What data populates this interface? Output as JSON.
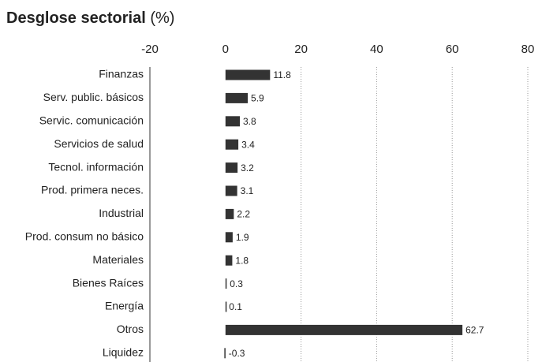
{
  "chart_data": {
    "type": "barh",
    "title": "Desglose sectorial",
    "title_unit": "(%)",
    "categories": [
      "Finanzas",
      "Serv. public. básicos",
      "Servic. comunicación",
      "Servicios de salud",
      "Tecnol. información",
      "Prod. primera neces.",
      "Industrial",
      "Prod. consum no básico",
      "Materiales",
      "Bienes Raíces",
      "Energía",
      "Otros",
      "Liquidez"
    ],
    "values": [
      11.8,
      5.9,
      3.8,
      3.4,
      3.2,
      3.1,
      2.2,
      1.9,
      1.8,
      0.3,
      0.1,
      62.7,
      -0.3
    ],
    "color": "#333333",
    "xlim": [
      -20,
      80
    ],
    "xticks": [
      -20,
      0,
      20,
      40,
      60,
      80
    ],
    "grid": true
  }
}
